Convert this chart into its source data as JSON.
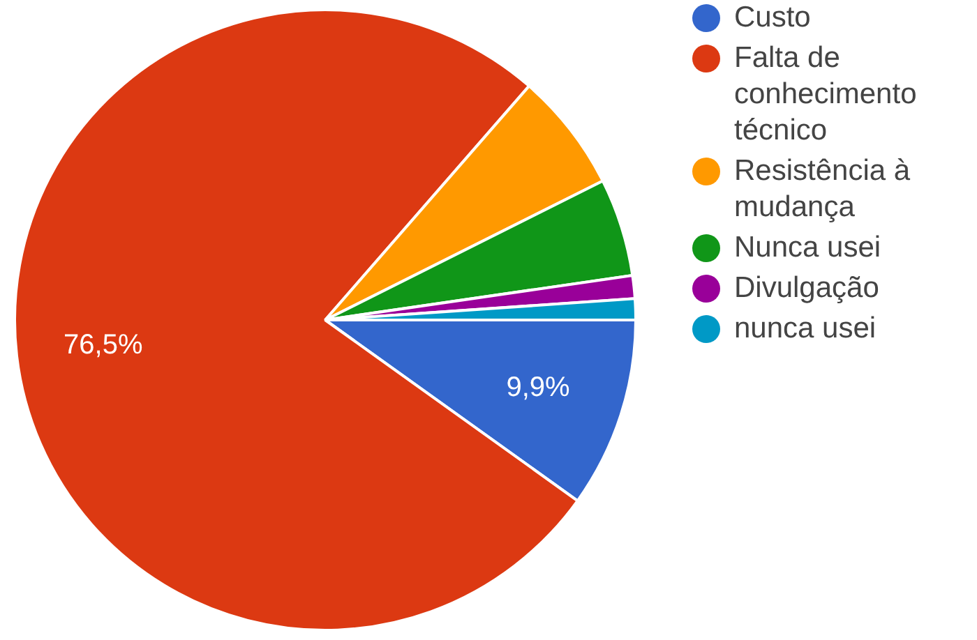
{
  "chart_data": {
    "type": "pie",
    "categories": [
      "Custo",
      "Falta de conhecimento técnico",
      "Resistência à mudança",
      "Nunca usei",
      "Divulgação",
      "nunca usei"
    ],
    "values": [
      9.9,
      76.5,
      6.2,
      5.1,
      1.2,
      1.1
    ],
    "colors": [
      "#3366cc",
      "#dc3912",
      "#ff9900",
      "#109618",
      "#990099",
      "#0099c6"
    ],
    "value_labels": [
      "9,9%",
      "76,5%",
      null,
      null,
      null,
      null
    ],
    "legend": "right"
  }
}
